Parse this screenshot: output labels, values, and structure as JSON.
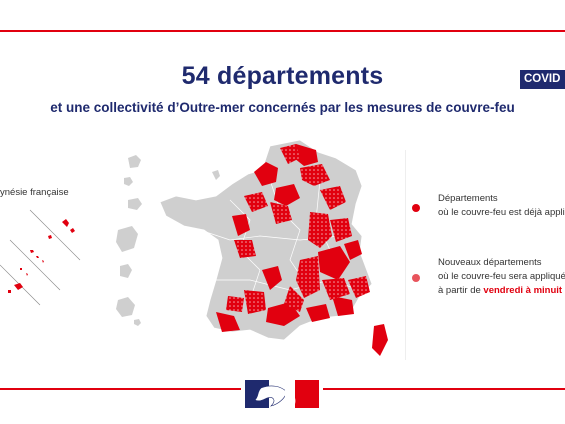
{
  "header": {
    "title": "54 départements",
    "subtitle": "et une collectivité d’Outre-mer concernés par les mesures de couvre-feu",
    "badge": "COVID"
  },
  "map": {
    "inset_label": "ynésie française"
  },
  "legend": {
    "item1": {
      "line1": "Départements",
      "line2": "où le couvre-feu est déjà appliqué",
      "color": "#e1000f"
    },
    "item2": {
      "line1": "Nouveaux départements",
      "line2": "où le couvre-feu sera appliqué",
      "line3_prefix": "à partir de ",
      "line3_highlight": "vendredi à minuit",
      "color": "#e8545c"
    }
  },
  "colors": {
    "accent_red": "#e1000f",
    "navy": "#1f2a6e",
    "grey_region": "#cfcfcf"
  }
}
